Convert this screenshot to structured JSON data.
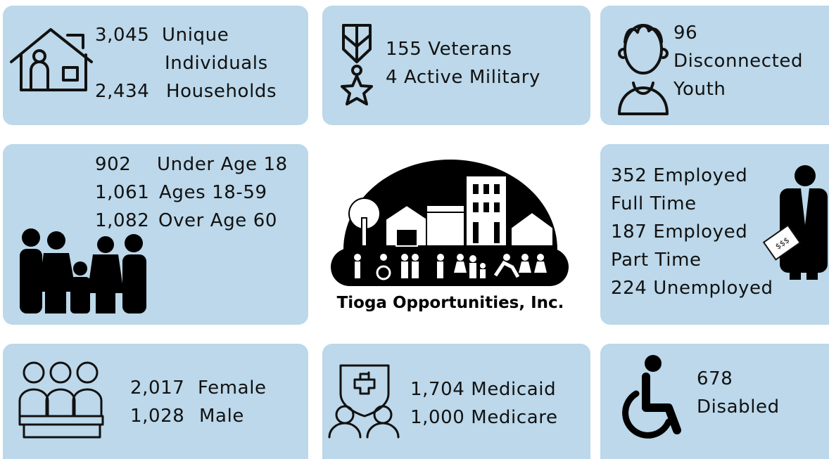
{
  "cards": [
    {
      "items": [
        {
          "number": "3,045",
          "label": "Unique"
        },
        {
          "label": "Individuals"
        },
        {
          "number": "2,434",
          "label": "Households"
        }
      ]
    },
    {
      "items": [
        {
          "label": "155 Veterans"
        },
        {
          "label": "4 Active Military"
        }
      ]
    },
    {
      "items": [
        {
          "label": "96"
        },
        {
          "label": "Disconnected"
        },
        {
          "label": "Youth"
        }
      ]
    },
    {
      "items": [
        {
          "number": "902",
          "label": "Under Age 18"
        },
        {
          "number": "1,061",
          "label": "Ages 18-59"
        },
        {
          "number": "1,082",
          "label": "Over Age 60"
        }
      ]
    },
    {
      "items": [
        {
          "label": "352 Employed"
        },
        {
          "label": "Full Time"
        },
        {
          "label": "187 Employed"
        },
        {
          "label": "Part Time"
        },
        {
          "label": "224 Unemployed"
        }
      ]
    },
    {
      "items": [
        {
          "number": "2,017",
          "label": "Female"
        },
        {
          "number": "1,028",
          "label": "Male"
        }
      ]
    },
    {
      "items": [
        {
          "label": "1,704 Medicaid"
        },
        {
          "label": "1,000 Medicare"
        }
      ]
    },
    {
      "items": [
        {
          "label": "678"
        },
        {
          "label": "Disabled"
        }
      ]
    }
  ],
  "logo": {
    "name": "Tioga Opportunities, Inc.",
    "money": "$$$"
  }
}
